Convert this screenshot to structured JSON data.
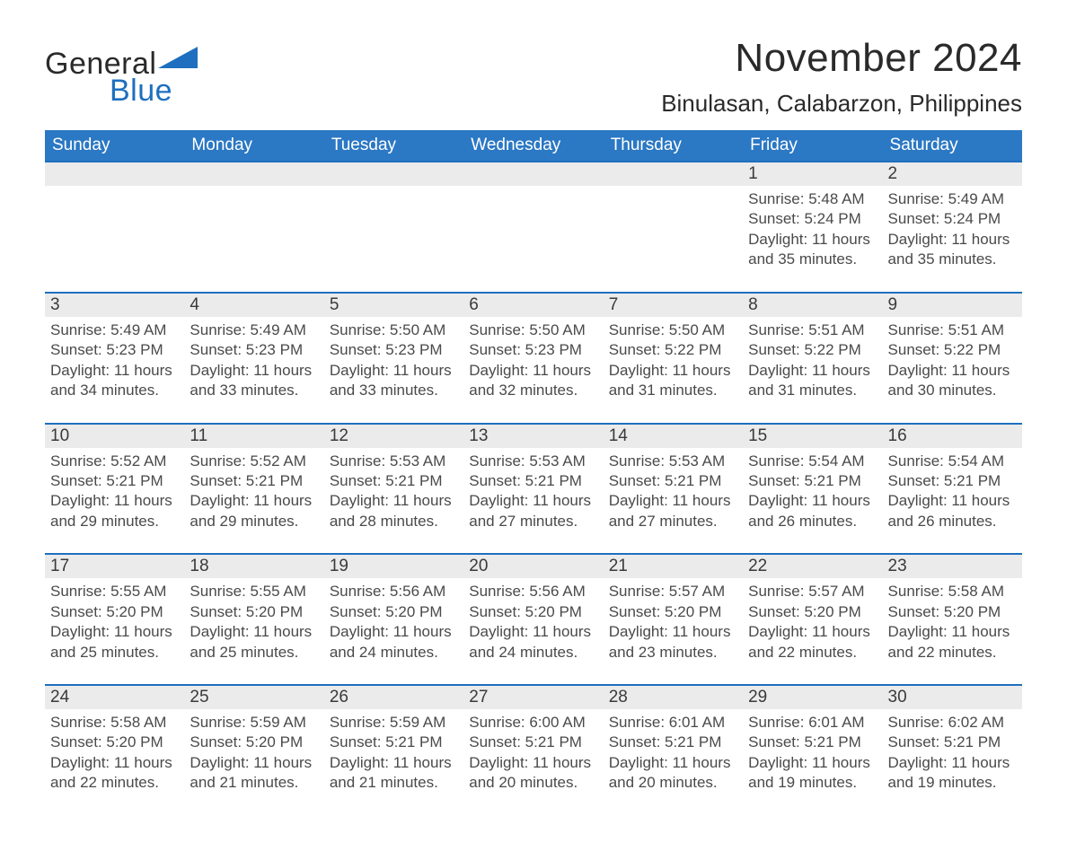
{
  "brand": {
    "word1": "General",
    "word2": "Blue"
  },
  "header": {
    "title": "November 2024",
    "location": "Binulasan, Calabarzon, Philippines"
  },
  "colors": {
    "header_bg": "#2b78c4",
    "accent": "#1e6fbf",
    "stripe": "#ebebeb",
    "page_bg": "#ffffff",
    "text": "#2f2f2f"
  },
  "typography": {
    "title_fontsize": 44,
    "location_fontsize": 26,
    "dayhdr_fontsize": 19,
    "body_fontsize": 17
  },
  "calendar": {
    "weekday_labels": [
      "Sunday",
      "Monday",
      "Tuesday",
      "Wednesday",
      "Thursday",
      "Friday",
      "Saturday"
    ],
    "weeks": [
      [
        null,
        null,
        null,
        null,
        null,
        {
          "n": "1",
          "sunrise": "Sunrise: 5:48 AM",
          "sunset": "Sunset: 5:24 PM",
          "day1": "Daylight: 11 hours",
          "day2": "and 35 minutes."
        },
        {
          "n": "2",
          "sunrise": "Sunrise: 5:49 AM",
          "sunset": "Sunset: 5:24 PM",
          "day1": "Daylight: 11 hours",
          "day2": "and 35 minutes."
        }
      ],
      [
        {
          "n": "3",
          "sunrise": "Sunrise: 5:49 AM",
          "sunset": "Sunset: 5:23 PM",
          "day1": "Daylight: 11 hours",
          "day2": "and 34 minutes."
        },
        {
          "n": "4",
          "sunrise": "Sunrise: 5:49 AM",
          "sunset": "Sunset: 5:23 PM",
          "day1": "Daylight: 11 hours",
          "day2": "and 33 minutes."
        },
        {
          "n": "5",
          "sunrise": "Sunrise: 5:50 AM",
          "sunset": "Sunset: 5:23 PM",
          "day1": "Daylight: 11 hours",
          "day2": "and 33 minutes."
        },
        {
          "n": "6",
          "sunrise": "Sunrise: 5:50 AM",
          "sunset": "Sunset: 5:23 PM",
          "day1": "Daylight: 11 hours",
          "day2": "and 32 minutes."
        },
        {
          "n": "7",
          "sunrise": "Sunrise: 5:50 AM",
          "sunset": "Sunset: 5:22 PM",
          "day1": "Daylight: 11 hours",
          "day2": "and 31 minutes."
        },
        {
          "n": "8",
          "sunrise": "Sunrise: 5:51 AM",
          "sunset": "Sunset: 5:22 PM",
          "day1": "Daylight: 11 hours",
          "day2": "and 31 minutes."
        },
        {
          "n": "9",
          "sunrise": "Sunrise: 5:51 AM",
          "sunset": "Sunset: 5:22 PM",
          "day1": "Daylight: 11 hours",
          "day2": "and 30 minutes."
        }
      ],
      [
        {
          "n": "10",
          "sunrise": "Sunrise: 5:52 AM",
          "sunset": "Sunset: 5:21 PM",
          "day1": "Daylight: 11 hours",
          "day2": "and 29 minutes."
        },
        {
          "n": "11",
          "sunrise": "Sunrise: 5:52 AM",
          "sunset": "Sunset: 5:21 PM",
          "day1": "Daylight: 11 hours",
          "day2": "and 29 minutes."
        },
        {
          "n": "12",
          "sunrise": "Sunrise: 5:53 AM",
          "sunset": "Sunset: 5:21 PM",
          "day1": "Daylight: 11 hours",
          "day2": "and 28 minutes."
        },
        {
          "n": "13",
          "sunrise": "Sunrise: 5:53 AM",
          "sunset": "Sunset: 5:21 PM",
          "day1": "Daylight: 11 hours",
          "day2": "and 27 minutes."
        },
        {
          "n": "14",
          "sunrise": "Sunrise: 5:53 AM",
          "sunset": "Sunset: 5:21 PM",
          "day1": "Daylight: 11 hours",
          "day2": "and 27 minutes."
        },
        {
          "n": "15",
          "sunrise": "Sunrise: 5:54 AM",
          "sunset": "Sunset: 5:21 PM",
          "day1": "Daylight: 11 hours",
          "day2": "and 26 minutes."
        },
        {
          "n": "16",
          "sunrise": "Sunrise: 5:54 AM",
          "sunset": "Sunset: 5:21 PM",
          "day1": "Daylight: 11 hours",
          "day2": "and 26 minutes."
        }
      ],
      [
        {
          "n": "17",
          "sunrise": "Sunrise: 5:55 AM",
          "sunset": "Sunset: 5:20 PM",
          "day1": "Daylight: 11 hours",
          "day2": "and 25 minutes."
        },
        {
          "n": "18",
          "sunrise": "Sunrise: 5:55 AM",
          "sunset": "Sunset: 5:20 PM",
          "day1": "Daylight: 11 hours",
          "day2": "and 25 minutes."
        },
        {
          "n": "19",
          "sunrise": "Sunrise: 5:56 AM",
          "sunset": "Sunset: 5:20 PM",
          "day1": "Daylight: 11 hours",
          "day2": "and 24 minutes."
        },
        {
          "n": "20",
          "sunrise": "Sunrise: 5:56 AM",
          "sunset": "Sunset: 5:20 PM",
          "day1": "Daylight: 11 hours",
          "day2": "and 24 minutes."
        },
        {
          "n": "21",
          "sunrise": "Sunrise: 5:57 AM",
          "sunset": "Sunset: 5:20 PM",
          "day1": "Daylight: 11 hours",
          "day2": "and 23 minutes."
        },
        {
          "n": "22",
          "sunrise": "Sunrise: 5:57 AM",
          "sunset": "Sunset: 5:20 PM",
          "day1": "Daylight: 11 hours",
          "day2": "and 22 minutes."
        },
        {
          "n": "23",
          "sunrise": "Sunrise: 5:58 AM",
          "sunset": "Sunset: 5:20 PM",
          "day1": "Daylight: 11 hours",
          "day2": "and 22 minutes."
        }
      ],
      [
        {
          "n": "24",
          "sunrise": "Sunrise: 5:58 AM",
          "sunset": "Sunset: 5:20 PM",
          "day1": "Daylight: 11 hours",
          "day2": "and 22 minutes."
        },
        {
          "n": "25",
          "sunrise": "Sunrise: 5:59 AM",
          "sunset": "Sunset: 5:20 PM",
          "day1": "Daylight: 11 hours",
          "day2": "and 21 minutes."
        },
        {
          "n": "26",
          "sunrise": "Sunrise: 5:59 AM",
          "sunset": "Sunset: 5:21 PM",
          "day1": "Daylight: 11 hours",
          "day2": "and 21 minutes."
        },
        {
          "n": "27",
          "sunrise": "Sunrise: 6:00 AM",
          "sunset": "Sunset: 5:21 PM",
          "day1": "Daylight: 11 hours",
          "day2": "and 20 minutes."
        },
        {
          "n": "28",
          "sunrise": "Sunrise: 6:01 AM",
          "sunset": "Sunset: 5:21 PM",
          "day1": "Daylight: 11 hours",
          "day2": "and 20 minutes."
        },
        {
          "n": "29",
          "sunrise": "Sunrise: 6:01 AM",
          "sunset": "Sunset: 5:21 PM",
          "day1": "Daylight: 11 hours",
          "day2": "and 19 minutes."
        },
        {
          "n": "30",
          "sunrise": "Sunrise: 6:02 AM",
          "sunset": "Sunset: 5:21 PM",
          "day1": "Daylight: 11 hours",
          "day2": "and 19 minutes."
        }
      ]
    ]
  }
}
